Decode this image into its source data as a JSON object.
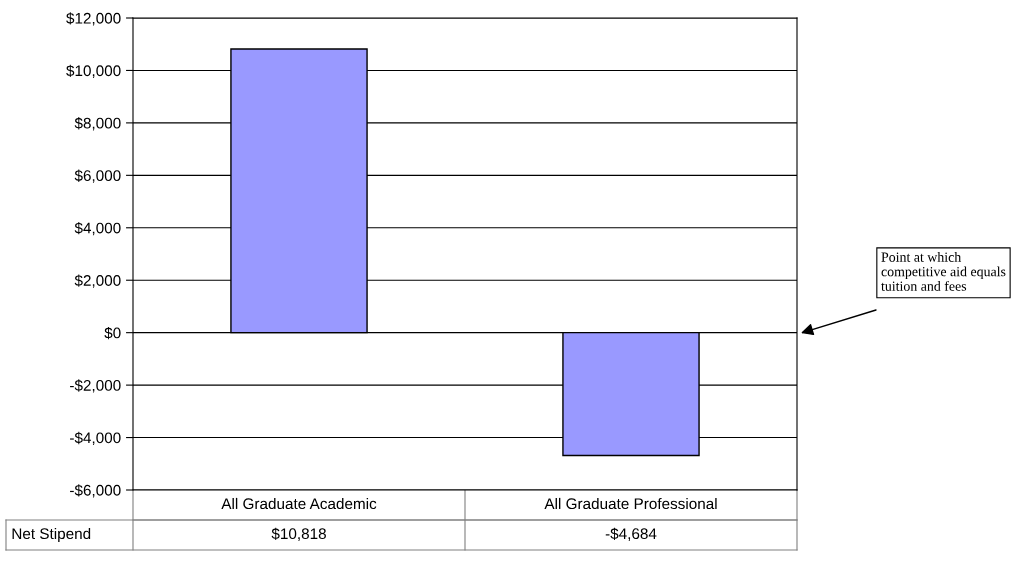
{
  "chart_data": {
    "type": "bar",
    "categories": [
      "All Graduate Academic",
      "All Graduate Professional"
    ],
    "series": [
      {
        "name": "Net Stipend",
        "color": "#9999ff",
        "values": [
          10818,
          -4684
        ],
        "value_labels": [
          "$10,818",
          "-$4,684"
        ]
      }
    ],
    "ylim": [
      -6000,
      12000
    ],
    "yticks": [
      {
        "value": -6000,
        "label": "-$6,000"
      },
      {
        "value": -4000,
        "label": "-$4,000"
      },
      {
        "value": -2000,
        "label": "-$2,000"
      },
      {
        "value": 0,
        "label": "$0"
      },
      {
        "value": 2000,
        "label": "$2,000"
      },
      {
        "value": 4000,
        "label": "$4,000"
      },
      {
        "value": 6000,
        "label": "$6,000"
      },
      {
        "value": 8000,
        "label": "$8,000"
      },
      {
        "value": 10000,
        "label": "$10,000"
      },
      {
        "value": 12000,
        "label": "$12,000"
      }
    ],
    "grid": "y",
    "legend": false,
    "annotations": [
      "Point at which competitive aid equals tuition and fees"
    ]
  }
}
